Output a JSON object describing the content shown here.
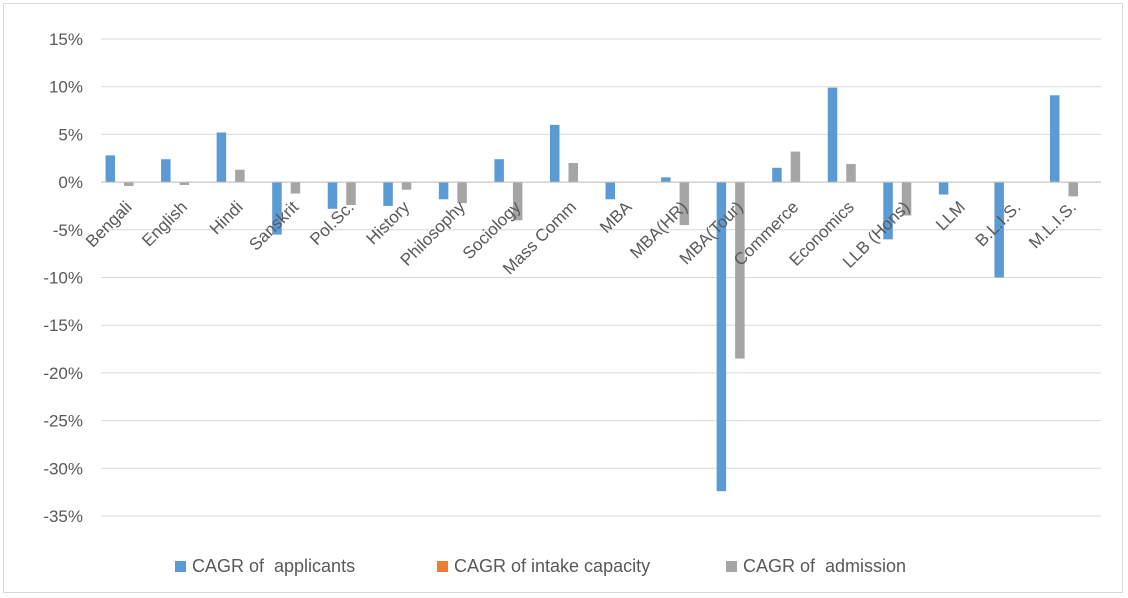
{
  "chart_data": {
    "type": "bar",
    "categories": [
      "Bengali",
      "English",
      "Hindi",
      "Sanskrit",
      "Pol.Sc.",
      "History",
      "Philosophy",
      "Sociology",
      "Mass Comm",
      "MBA",
      "MBA(HR)",
      "MBA(Tour)",
      "Commerce",
      "Economics",
      "LLB (Hons)",
      "LLM",
      "B.L.I.S.",
      "M.L.I.S."
    ],
    "series": [
      {
        "name": "CAGR of  applicants",
        "color": "#5b9bd5",
        "values": [
          2.8,
          2.4,
          5.2,
          -5.5,
          -2.8,
          -2.5,
          -1.8,
          2.4,
          6.0,
          -1.8,
          0.5,
          -32.4,
          1.5,
          9.9,
          -6.0,
          -1.3,
          -10.0,
          9.1
        ]
      },
      {
        "name": "CAGR of intake capacity",
        "color": "#ed7d31",
        "values": [
          0,
          0,
          0,
          0,
          0,
          0,
          0,
          0,
          0,
          0,
          0,
          0,
          0,
          0,
          0,
          0,
          0,
          0
        ]
      },
      {
        "name": "CAGR of  admission",
        "color": "#a5a5a5",
        "values": [
          -0.4,
          -0.3,
          1.3,
          -1.2,
          -2.4,
          -0.8,
          -2.2,
          -4.0,
          2.0,
          0,
          -4.5,
          -18.5,
          3.2,
          1.9,
          -3.5,
          0,
          0,
          -1.5
        ]
      }
    ],
    "yticks": [
      "15%",
      "10%",
      "5%",
      "0%",
      "-5%",
      "-10%",
      "-15%",
      "-20%",
      "-25%",
      "-30%",
      "-35%"
    ],
    "ylim": [
      -35,
      15
    ],
    "grid": true,
    "legend": "bottom"
  }
}
